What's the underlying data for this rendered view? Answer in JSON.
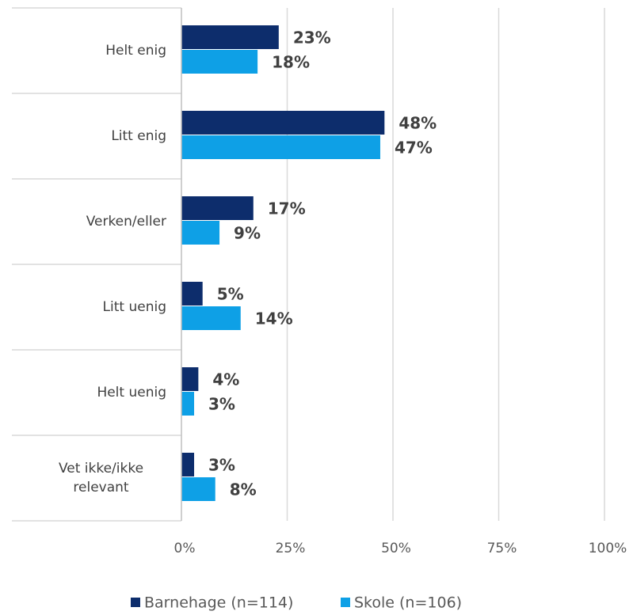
{
  "chart_data": {
    "type": "bar",
    "orientation": "horizontal",
    "categories": [
      "Helt enig",
      "Litt enig",
      "Verken/eller",
      "Litt uenig",
      "Helt uenig",
      "Vet ikke/ikke relevant"
    ],
    "series": [
      {
        "name": "Barnehage (n=114)",
        "color": "#0d2d6c",
        "values": [
          23,
          48,
          17,
          5,
          4,
          3
        ],
        "value_labels": [
          "23%",
          "48%",
          "17%",
          "5%",
          "4%",
          "3%"
        ]
      },
      {
        "name": "Skole (n=106)",
        "color": "#0ea0e6",
        "values": [
          18,
          47,
          9,
          14,
          3,
          8
        ],
        "value_labels": [
          "18%",
          "47%",
          "9%",
          "14%",
          "3%",
          "8%"
        ]
      }
    ],
    "xlim": [
      0,
      100
    ],
    "xticks": [
      {
        "value": 0,
        "label": "0%"
      },
      {
        "value": 25,
        "label": "25%"
      },
      {
        "value": 50,
        "label": "50%"
      },
      {
        "value": 75,
        "label": "75%"
      },
      {
        "value": 100,
        "label": "100%"
      }
    ],
    "grid": true,
    "legend": "bottom"
  }
}
